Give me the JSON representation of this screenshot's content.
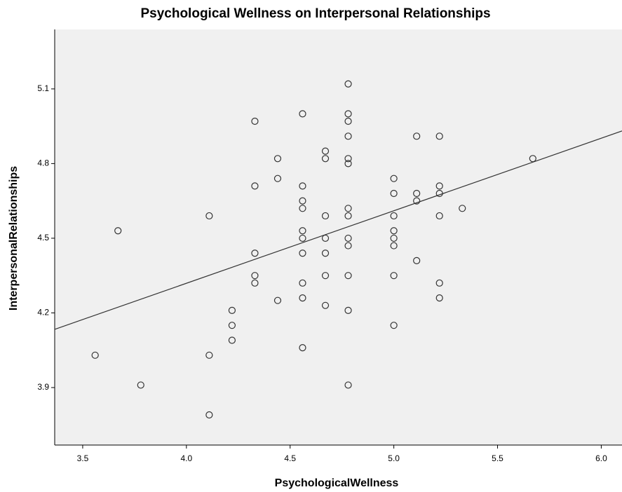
{
  "chart_data": {
    "type": "scatter",
    "title": "Psychological Wellness on Interpersonal Relationships",
    "x_label": "PsychologicalWellness",
    "y_label": "InterpersonalRelationships",
    "xlim": [
      3.365,
      6.1
    ],
    "ylim": [
      3.669,
      5.339
    ],
    "xticks": [
      3.5,
      {
        "value": 4,
        "label": "4.0"
      },
      4.5,
      {
        "value": 5,
        "label": "5.0"
      },
      5.5,
      {
        "value": 6,
        "label": "6.0"
      }
    ],
    "yticks": [
      3.9,
      4.2,
      4.5,
      4.8,
      5.1
    ],
    "color": "#333333",
    "x": [
      3.56,
      3.67,
      3.78,
      4.11,
      4.11,
      4.11,
      4.22,
      4.22,
      4.22,
      4.33,
      4.33,
      4.33,
      4.33,
      4.33,
      4.44,
      4.44,
      4.44,
      4.56,
      4.56,
      4.56,
      4.56,
      4.56,
      4.56,
      4.56,
      4.56,
      4.56,
      4.56,
      4.67,
      4.67,
      4.67,
      4.67,
      4.67,
      4.67,
      4.67,
      4.78,
      4.78,
      4.78,
      4.78,
      4.78,
      4.78,
      4.78,
      4.78,
      4.78,
      4.78,
      4.78,
      4.78,
      4.78,
      5.0,
      5.0,
      5.0,
      5.0,
      5.0,
      5.0,
      5.0,
      5.0,
      5.11,
      5.11,
      5.11,
      5.11,
      5.22,
      5.22,
      5.22,
      5.22,
      5.22,
      5.22,
      5.33,
      5.67
    ],
    "y": [
      4.03,
      4.53,
      3.91,
      4.59,
      4.03,
      3.79,
      4.21,
      4.15,
      4.09,
      4.97,
      4.71,
      4.44,
      4.35,
      4.32,
      4.82,
      4.74,
      4.25,
      5.0,
      4.71,
      4.65,
      4.62,
      4.53,
      4.5,
      4.44,
      4.32,
      4.26,
      4.06,
      4.85,
      4.82,
      4.59,
      4.5,
      4.44,
      4.35,
      4.23,
      5.12,
      5.0,
      4.97,
      4.91,
      4.82,
      4.8,
      4.62,
      4.59,
      4.5,
      4.47,
      4.35,
      4.21,
      3.91,
      4.74,
      4.68,
      4.59,
      4.53,
      4.5,
      4.47,
      4.35,
      4.15,
      4.91,
      4.68,
      4.65,
      4.41,
      4.91,
      4.71,
      4.68,
      4.59,
      4.32,
      4.26,
      4.62,
      4.82
    ],
    "fit_line": {
      "x": [
        3.365,
        6.1
      ],
      "y": [
        4.134,
        4.931
      ]
    }
  }
}
